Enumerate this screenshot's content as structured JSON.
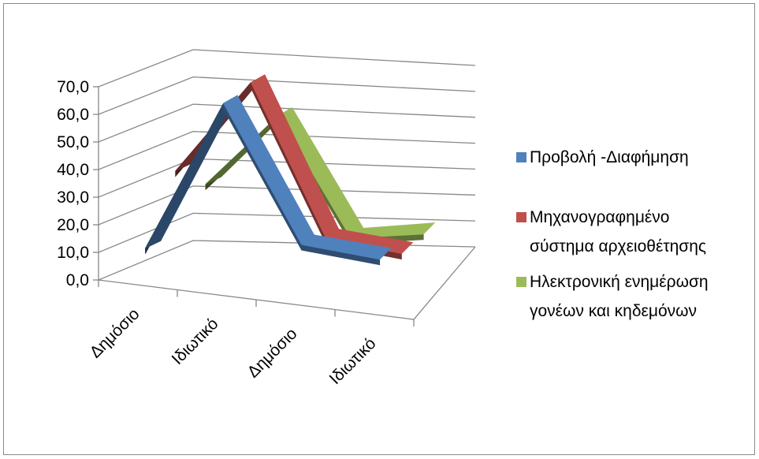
{
  "chart_data": {
    "type": "line",
    "view": "3d",
    "categories": [
      "Δημόσιο",
      "Ιδιωτικό",
      "Δημόσιο",
      "Ιδιωτικό"
    ],
    "series": [
      {
        "name": "Προβολή -Διαφήμηση",
        "values": [
          12,
          68,
          20,
          18
        ],
        "color": "#4F81BD"
      },
      {
        "name": "Μηχανογραφημένο σύστημα αρχειοθέτησης",
        "values": [
          35,
          70,
          15,
          12
        ],
        "color": "#C0504D"
      },
      {
        "name": "Ηλεκτρονική ενημέρωση γονέων και κηδεμόνων",
        "values": [
          25,
          52,
          8,
          11
        ],
        "color": "#9BBB59"
      }
    ],
    "ylim": [
      0,
      70
    ],
    "y_step": 10,
    "y_ticks": [
      "0,0",
      "10,0",
      "20,0",
      "30,0",
      "40,0",
      "50,0",
      "60,0",
      "70,0"
    ],
    "grid": true,
    "legend": "right"
  }
}
